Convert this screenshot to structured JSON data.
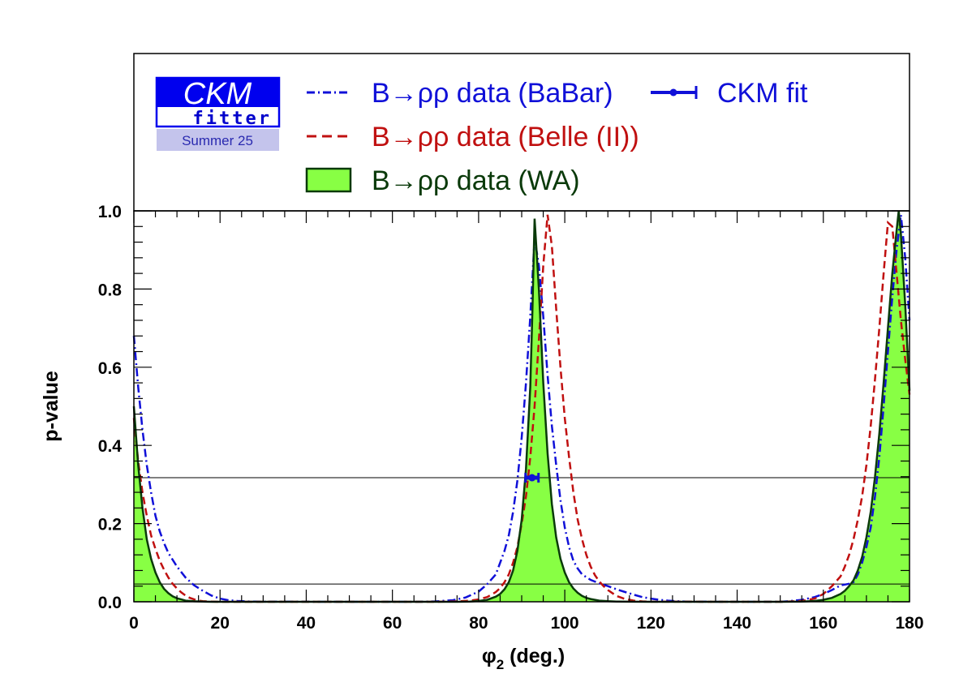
{
  "colors": {
    "babar": "#1010d8",
    "belle": "#c01010",
    "wa_line": "#0a3a0a",
    "wa_fill": "#88ff44",
    "ckm": "#1010d8",
    "frame": "#000000",
    "logo_blue": "#0000ee",
    "logo_band": "#c4c4ec"
  },
  "logo": {
    "title": "CKM",
    "subtitle": "fitter",
    "season": "Summer 25"
  },
  "legend": {
    "babar": "B→ρρ data (BaBar)",
    "belle": "B→ρρ data (Belle (II))",
    "wa": "B→ρρ data (WA)",
    "ckm": "CKM fit"
  },
  "chart_data": {
    "type": "line",
    "xlabel": "φ2 (deg.)",
    "xlabel_main": "φ",
    "xlabel_sub": "2",
    "xlabel_unit": " (deg.)",
    "ylabel": "p-value",
    "xlim": [
      0,
      180
    ],
    "ylim": [
      0,
      1
    ],
    "xticks": [
      0,
      20,
      40,
      60,
      80,
      100,
      120,
      140,
      160,
      180
    ],
    "xtick_labels": [
      "0",
      "20",
      "40",
      "60",
      "80",
      "100",
      "120",
      "140",
      "160",
      "180"
    ],
    "yticks": [
      0,
      0.2,
      0.4,
      0.6,
      0.8,
      1.0
    ],
    "ytick_labels": [
      "0.0",
      "0.2",
      "0.4",
      "0.6",
      "0.8",
      "1.0"
    ],
    "reference_lines": [
      0.3173,
      0.0455
    ],
    "series": [
      {
        "name": "B→ρρ data (BaBar)",
        "style": "dash-dot",
        "color_key": "babar",
        "x": [
          0,
          1,
          2,
          3,
          4,
          5,
          6,
          7,
          8,
          10,
          12,
          14,
          16,
          18,
          20,
          22,
          24,
          26,
          28,
          30,
          60,
          66,
          70,
          74,
          77,
          80,
          82,
          84,
          86,
          87,
          88,
          89,
          90,
          91,
          92,
          93,
          94,
          95,
          96,
          97,
          98,
          99,
          100,
          101,
          102,
          103,
          104,
          106,
          108,
          110,
          112,
          114,
          116,
          118,
          120,
          122,
          124,
          126,
          128,
          130,
          140,
          150,
          152,
          155,
          158,
          160,
          162,
          164,
          165,
          166,
          167,
          168,
          169,
          170,
          171,
          172,
          173,
          174,
          175,
          176,
          177,
          178,
          179,
          180
        ],
        "y": [
          0.68,
          0.55,
          0.44,
          0.35,
          0.28,
          0.22,
          0.18,
          0.15,
          0.125,
          0.09,
          0.062,
          0.042,
          0.028,
          0.016,
          0.008,
          0.004,
          0.002,
          0.001,
          0.0005,
          0.0002,
          0,
          0,
          0.001,
          0.004,
          0.011,
          0.026,
          0.045,
          0.07,
          0.13,
          0.17,
          0.23,
          0.31,
          0.42,
          0.56,
          0.73,
          0.93,
          0.86,
          0.73,
          0.58,
          0.45,
          0.35,
          0.26,
          0.19,
          0.14,
          0.105,
          0.085,
          0.07,
          0.056,
          0.047,
          0.04,
          0.032,
          0.025,
          0.018,
          0.012,
          0.008,
          0.005,
          0.003,
          0.0015,
          0.0007,
          0.0003,
          0,
          0,
          0.0015,
          0.005,
          0.012,
          0.02,
          0.03,
          0.042,
          0.044,
          0.046,
          0.05,
          0.07,
          0.1,
          0.14,
          0.19,
          0.27,
          0.37,
          0.5,
          0.64,
          0.78,
          0.9,
          0.99,
          0.88,
          0.72
        ]
      },
      {
        "name": "B→ρρ data (Belle (II))",
        "style": "dashed",
        "color_key": "belle",
        "x": [
          0,
          1,
          2,
          3,
          4,
          5,
          6,
          7,
          8,
          9,
          10,
          11,
          12,
          13,
          14,
          15,
          16,
          18,
          20,
          70,
          75,
          78,
          80,
          82,
          84,
          85,
          86,
          87,
          88,
          89,
          90,
          91,
          92,
          93,
          94,
          95,
          96,
          97,
          98,
          99,
          100,
          101,
          102,
          103,
          104,
          105,
          106,
          107,
          108,
          109,
          110,
          112,
          114,
          116,
          118,
          120,
          150,
          155,
          158,
          160,
          162,
          164,
          165,
          166,
          167,
          168,
          169,
          170,
          171,
          172,
          173,
          174,
          175,
          176,
          177,
          178,
          179,
          180
        ],
        "y": [
          0.47,
          0.36,
          0.28,
          0.22,
          0.17,
          0.135,
          0.105,
          0.082,
          0.062,
          0.046,
          0.034,
          0.024,
          0.016,
          0.01,
          0.006,
          0.003,
          0.0015,
          0.0004,
          0,
          0,
          0.001,
          0.003,
          0.006,
          0.012,
          0.025,
          0.035,
          0.05,
          0.07,
          0.1,
          0.14,
          0.2,
          0.27,
          0.37,
          0.5,
          0.67,
          0.86,
          0.99,
          0.91,
          0.75,
          0.6,
          0.47,
          0.37,
          0.28,
          0.21,
          0.16,
          0.12,
          0.09,
          0.068,
          0.052,
          0.04,
          0.03,
          0.015,
          0.007,
          0.003,
          0.001,
          0.0003,
          0,
          0.002,
          0.008,
          0.02,
          0.04,
          0.065,
          0.09,
          0.12,
          0.16,
          0.21,
          0.27,
          0.35,
          0.45,
          0.57,
          0.7,
          0.84,
          0.97,
          0.96,
          0.84,
          0.72,
          0.62,
          0.53
        ]
      },
      {
        "name": "B→ρρ data (WA)",
        "style": "filled",
        "color_key": "wa_fill",
        "x": [
          0,
          1,
          2,
          3,
          4,
          5,
          6,
          7,
          8,
          9,
          10,
          11,
          12,
          14,
          16,
          18,
          20,
          75,
          78,
          80,
          82,
          84,
          85,
          86,
          87,
          88,
          89,
          90,
          91,
          92,
          92.5,
          93,
          94,
          95,
          96,
          97,
          98,
          99,
          100,
          101,
          102,
          103,
          104,
          105,
          106,
          107,
          108,
          110,
          112,
          115,
          120,
          150,
          155,
          158,
          160,
          162,
          164,
          165,
          166,
          167,
          168,
          169,
          170,
          171,
          172,
          173,
          174,
          175,
          176,
          177,
          177.5,
          178,
          179,
          180
        ],
        "y": [
          0.5,
          0.35,
          0.24,
          0.16,
          0.11,
          0.075,
          0.05,
          0.033,
          0.022,
          0.014,
          0.009,
          0.006,
          0.003,
          0.0012,
          0.0004,
          0.0001,
          0,
          0,
          0.0005,
          0.002,
          0.005,
          0.013,
          0.02,
          0.032,
          0.05,
          0.08,
          0.13,
          0.21,
          0.34,
          0.55,
          0.75,
          0.98,
          0.8,
          0.56,
          0.38,
          0.25,
          0.165,
          0.11,
          0.075,
          0.05,
          0.034,
          0.023,
          0.015,
          0.01,
          0.007,
          0.005,
          0.003,
          0.0015,
          0.0007,
          0.0002,
          0,
          0,
          0.0006,
          0.002,
          0.005,
          0.01,
          0.02,
          0.028,
          0.04,
          0.055,
          0.08,
          0.115,
          0.165,
          0.23,
          0.32,
          0.43,
          0.56,
          0.7,
          0.84,
          0.95,
          1.0,
          0.94,
          0.76,
          0.54
        ]
      }
    ],
    "ckm_fit": {
      "x_low": 90.9,
      "x_high": 93.9,
      "x_center": 92.4,
      "y": 0.3173
    }
  }
}
